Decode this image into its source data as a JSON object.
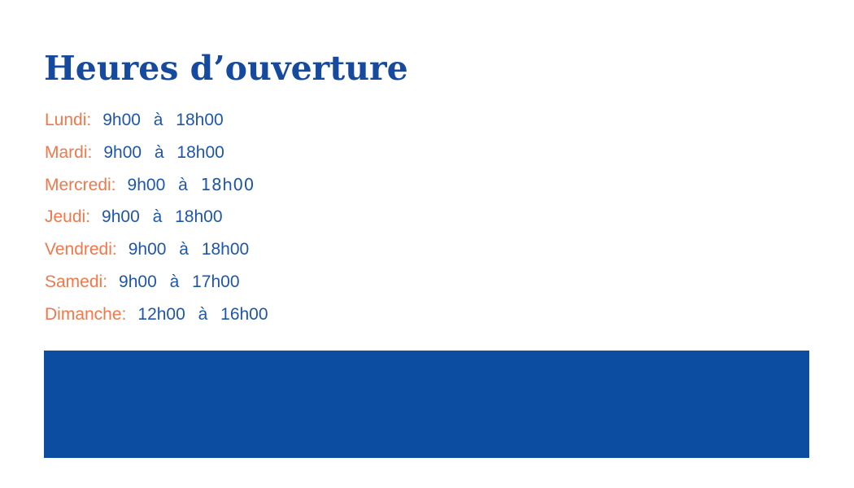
{
  "title": "Heures d’ouverture",
  "colors": {
    "background": "#FFFFFF",
    "title": "#164A9E",
    "day_label": "#F2774A",
    "hours_text": "#1E56AD",
    "footer_block": "#0C4DA2"
  },
  "hours": {
    "rows": [
      {
        "day": "Lundi:",
        "hours": "9h00 à 18h00",
        "hours_alt": ""
      },
      {
        "day": "Mardi:",
        "hours": "9h00 à 18h00",
        "hours_alt": ""
      },
      {
        "day": "Mercredi:",
        "hours": "9h00 à",
        "hours_alt": "18h00"
      },
      {
        "day": "Jeudi:",
        "hours": "9h00 à 18h00",
        "hours_alt": ""
      },
      {
        "day": "Vendredi:",
        "hours": "9h00 à 18h00",
        "hours_alt": ""
      },
      {
        "day": "Samedi:",
        "hours": "9h00 à 17h00",
        "hours_alt": ""
      },
      {
        "day": "Dimanche:",
        "hours": "12h00 à 16h00",
        "hours_alt": ""
      }
    ]
  }
}
